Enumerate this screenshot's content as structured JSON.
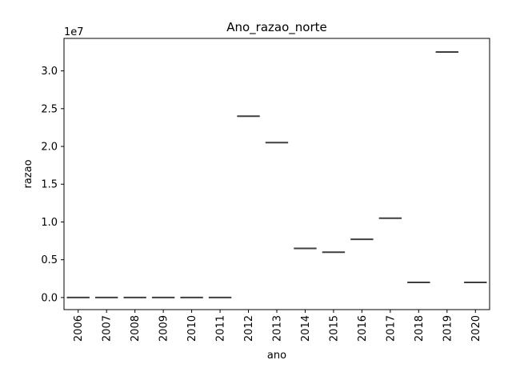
{
  "chart_data": {
    "type": "box",
    "title": "Ano_razao_norte",
    "xlabel": "ano",
    "ylabel": "razao",
    "offset_text": "1e7",
    "categories": [
      "2006",
      "2007",
      "2008",
      "2009",
      "2010",
      "2011",
      "2012",
      "2013",
      "2014",
      "2015",
      "2016",
      "2017",
      "2018",
      "2019",
      "2020"
    ],
    "values": [
      0,
      0,
      0,
      0,
      0,
      0,
      24000000,
      20500000,
      6500000,
      6000000,
      7700000,
      10500000,
      2000000,
      32500000,
      2000000
    ],
    "ylim": [
      -1600000,
      34300000
    ],
    "yticks": [
      0,
      5000000,
      10000000,
      15000000,
      20000000,
      25000000,
      30000000
    ],
    "ytick_labels": [
      "0.0",
      "0.5",
      "1.0",
      "1.5",
      "2.0",
      "2.5",
      "3.0"
    ],
    "grid": false,
    "line_color": "#3f3f3f"
  }
}
